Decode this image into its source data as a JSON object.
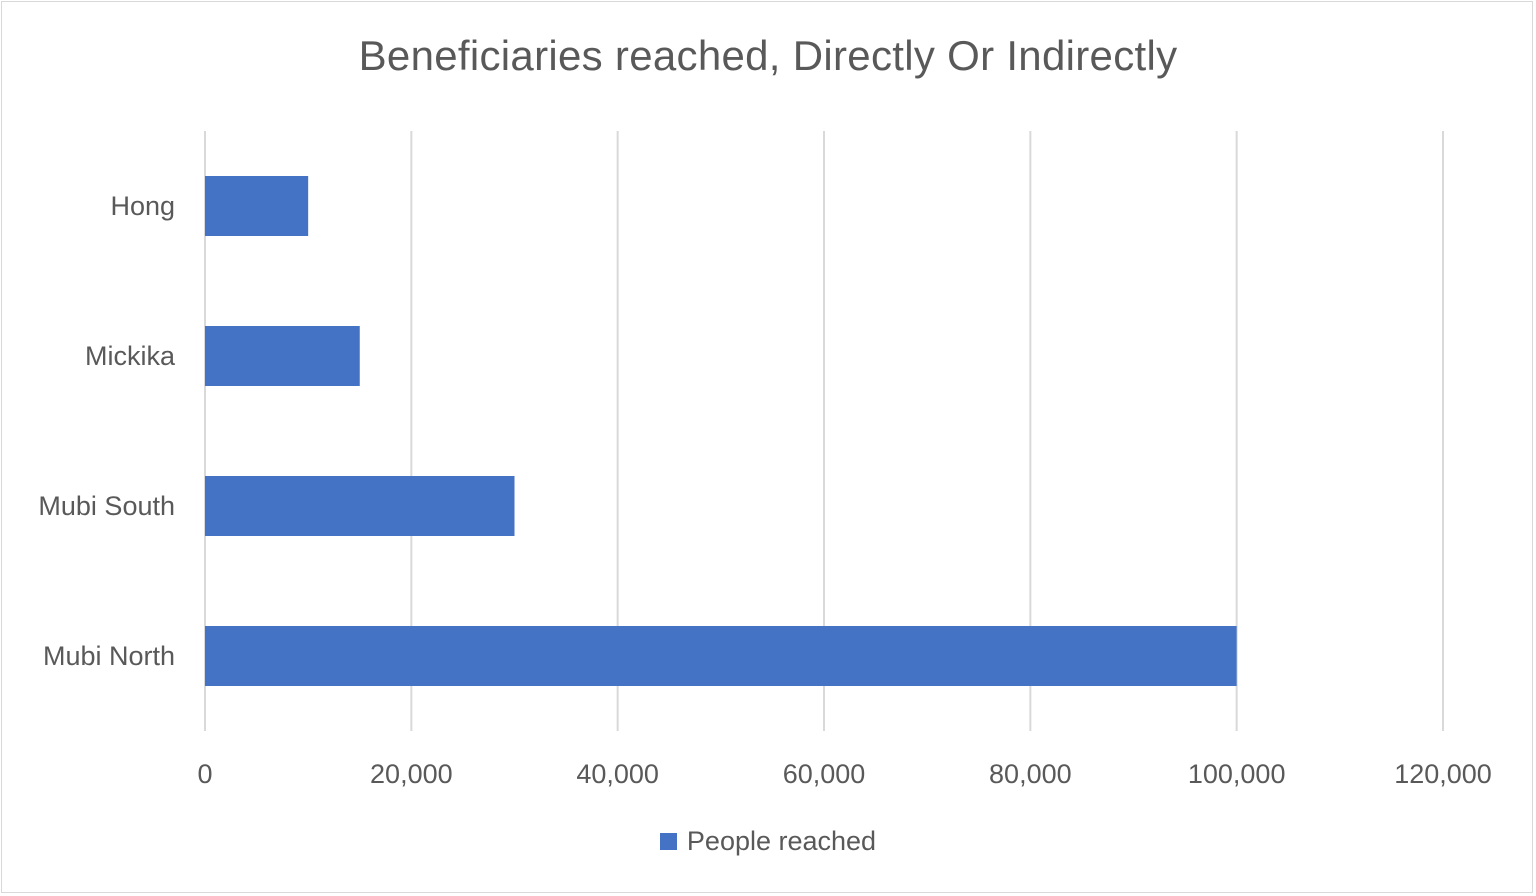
{
  "chart_data": {
    "type": "bar",
    "orientation": "horizontal",
    "title": "Beneficiaries reached, Directly Or Indirectly",
    "categories": [
      "Hong",
      "Mickika",
      "Mubi South",
      "Mubi North"
    ],
    "series": [
      {
        "name": "People reached",
        "values": [
          10000,
          15000,
          30000,
          100000
        ],
        "color": "#4472c4"
      }
    ],
    "xlim": [
      0,
      120000
    ],
    "xticks": [
      0,
      20000,
      40000,
      60000,
      80000,
      100000,
      120000
    ],
    "xtick_labels": [
      "0",
      "20,000",
      "40,000",
      "60,000",
      "80,000",
      "100,000",
      "120,000"
    ],
    "xlabel": "",
    "ylabel": "",
    "grid": "vertical",
    "legend": "bottom"
  }
}
